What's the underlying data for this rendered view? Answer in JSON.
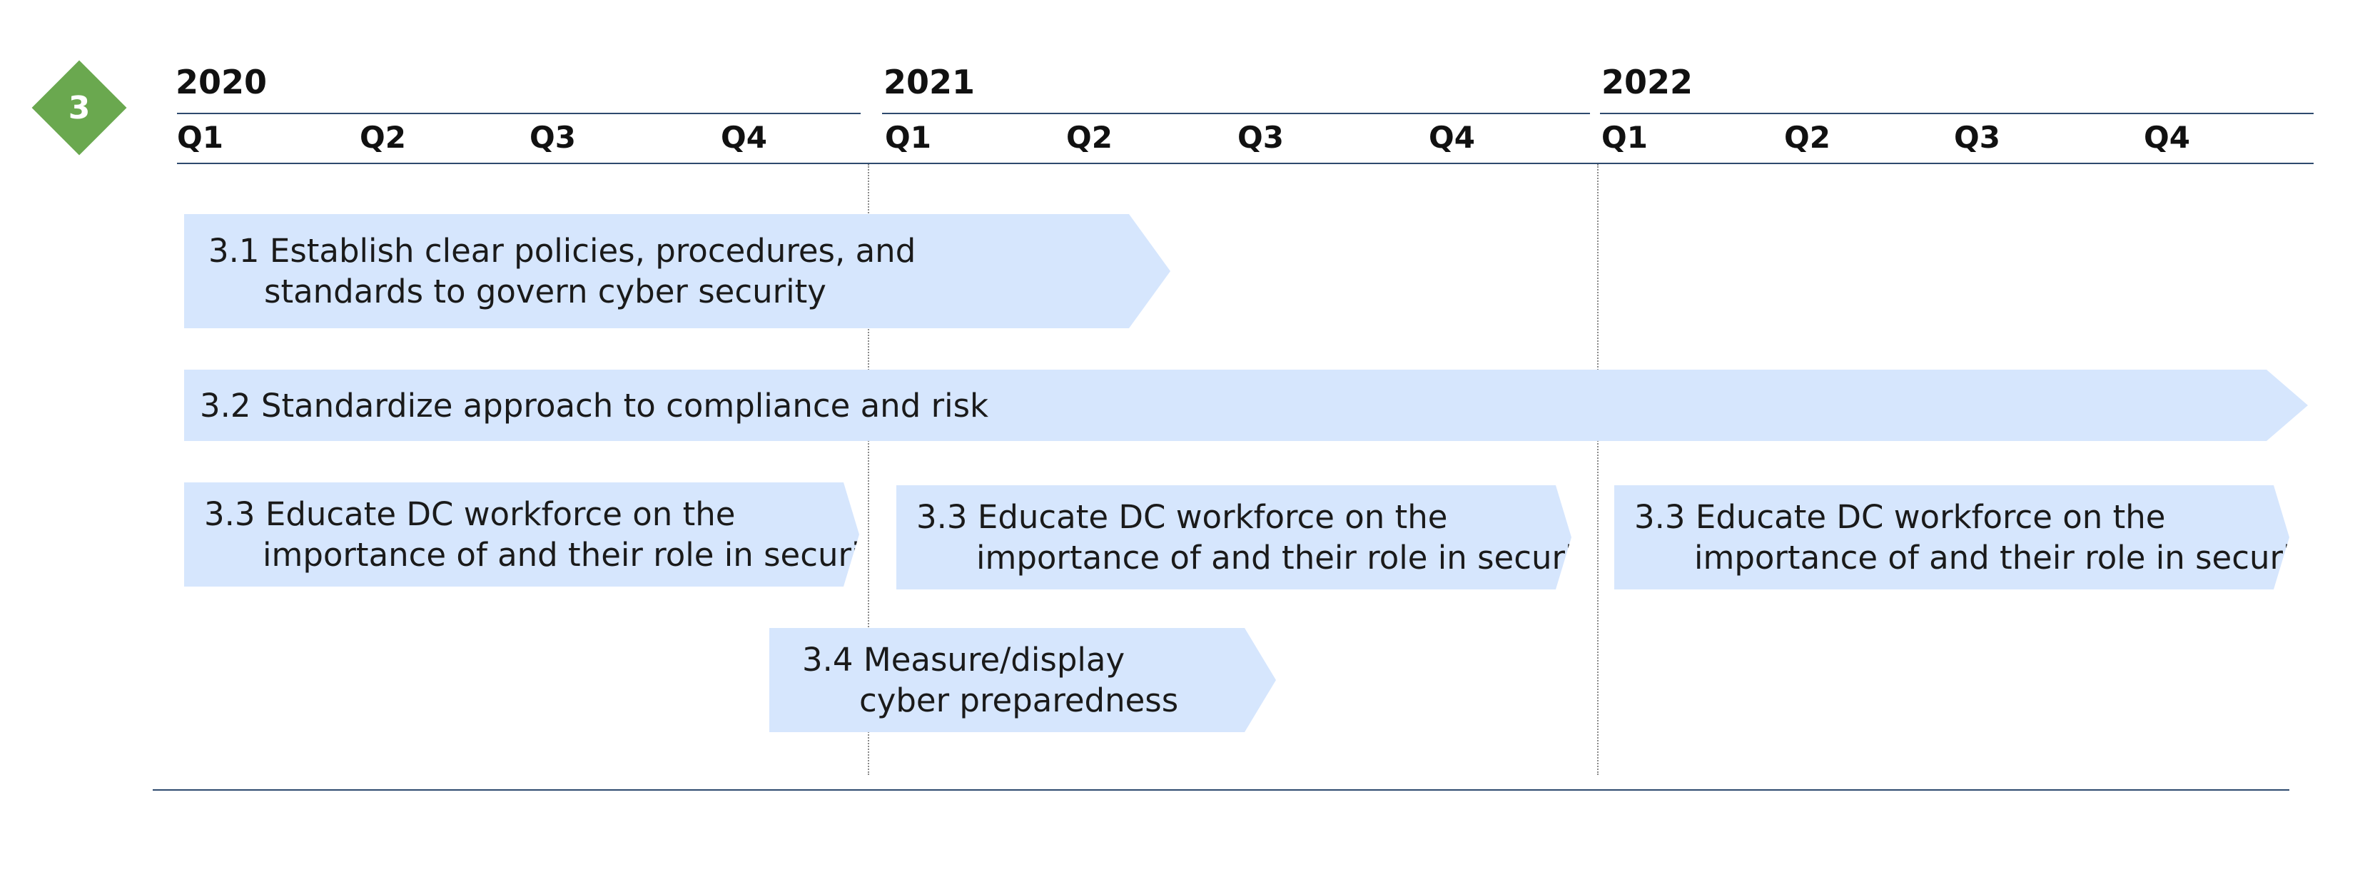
{
  "badge": {
    "number": "3",
    "color": "#6aa84f"
  },
  "timeline": {
    "years": [
      {
        "label": "2020",
        "quarters": [
          "Q1",
          "Q2",
          "Q3",
          "Q4"
        ]
      },
      {
        "label": "2021",
        "quarters": [
          "Q1",
          "Q2",
          "Q3",
          "Q4"
        ]
      },
      {
        "label": "2022",
        "quarters": [
          "Q1",
          "Q2",
          "Q3",
          "Q4"
        ]
      }
    ]
  },
  "bars": [
    {
      "number": "3.1",
      "line1": "Establish clear policies, procedures, and",
      "line2": "standards to govern cyber security"
    },
    {
      "number": "3.2",
      "line1": "Standardize approach to compliance and risk",
      "line2": ""
    },
    {
      "number": "3.3",
      "line1": "Educate DC workforce on the",
      "line2": "importance of and their role in security"
    },
    {
      "number": "3.3",
      "line1": "Educate DC workforce on the",
      "line2": "importance of and their role in security"
    },
    {
      "number": "3.3",
      "line1": "Educate DC workforce on the",
      "line2": "importance of and their role in security"
    },
    {
      "number": "3.4",
      "line1": "Measure/display",
      "line2": "cyber preparedness"
    }
  ],
  "colors": {
    "bar_fill": "#d6e6fd",
    "rule": "#2e4a6e"
  }
}
